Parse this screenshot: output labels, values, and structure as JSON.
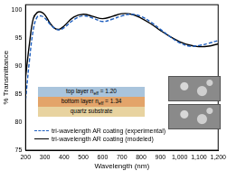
{
  "chart_data": {
    "type": "line",
    "x_label": "Wavelength (nm)",
    "y_label": "% Transmittance",
    "x": [
      200,
      220,
      240,
      260,
      280,
      300,
      325,
      350,
      375,
      400,
      450,
      500,
      550,
      600,
      650,
      700,
      750,
      800,
      850,
      900,
      950,
      1000,
      1050,
      1100,
      1150,
      1200
    ],
    "series": [
      {
        "name": "tri-wavelength AR coating (experimental)",
        "color": "#1f5fbf",
        "line_style": "dashed",
        "values": [
          84,
          91,
          96.5,
          98.8,
          99.0,
          98.6,
          97.6,
          96.8,
          96.5,
          96.9,
          98.3,
          99.0,
          98.6,
          98.0,
          98.4,
          99.0,
          99.3,
          98.9,
          97.9,
          96.6,
          95.3,
          94.2,
          93.6,
          93.7,
          94.1,
          94.6
        ]
      },
      {
        "name": "tri-wavelength AR coating (modeled)",
        "color": "#000000",
        "line_style": "solid",
        "values": [
          88,
          94,
          98.5,
          99.6,
          99.7,
          99.2,
          97.8,
          96.8,
          96.6,
          97.2,
          98.8,
          99.3,
          98.9,
          98.5,
          98.9,
          99.4,
          99.3,
          98.6,
          97.6,
          96.4,
          95.3,
          94.4,
          93.8,
          93.5,
          93.6,
          94.0
        ]
      }
    ],
    "xlim": [
      200,
      1200
    ],
    "xticks": [
      200,
      300,
      400,
      500,
      600,
      700,
      800,
      900,
      1000,
      1100,
      1200
    ],
    "ylim": [
      75,
      101
    ],
    "yticks": [
      75,
      80,
      85,
      90,
      95,
      100
    ],
    "grid": false,
    "legend": "bottom",
    "inset": {
      "layers": [
        {
          "name": "top layer",
          "symbol": "n",
          "subscript": "eff",
          "value": "= 1.20"
        },
        {
          "name": "bottom layer",
          "symbol": "n",
          "subscript": "eff",
          "value": "= 1.34"
        },
        {
          "name": "quartz substrate"
        }
      ]
    }
  }
}
